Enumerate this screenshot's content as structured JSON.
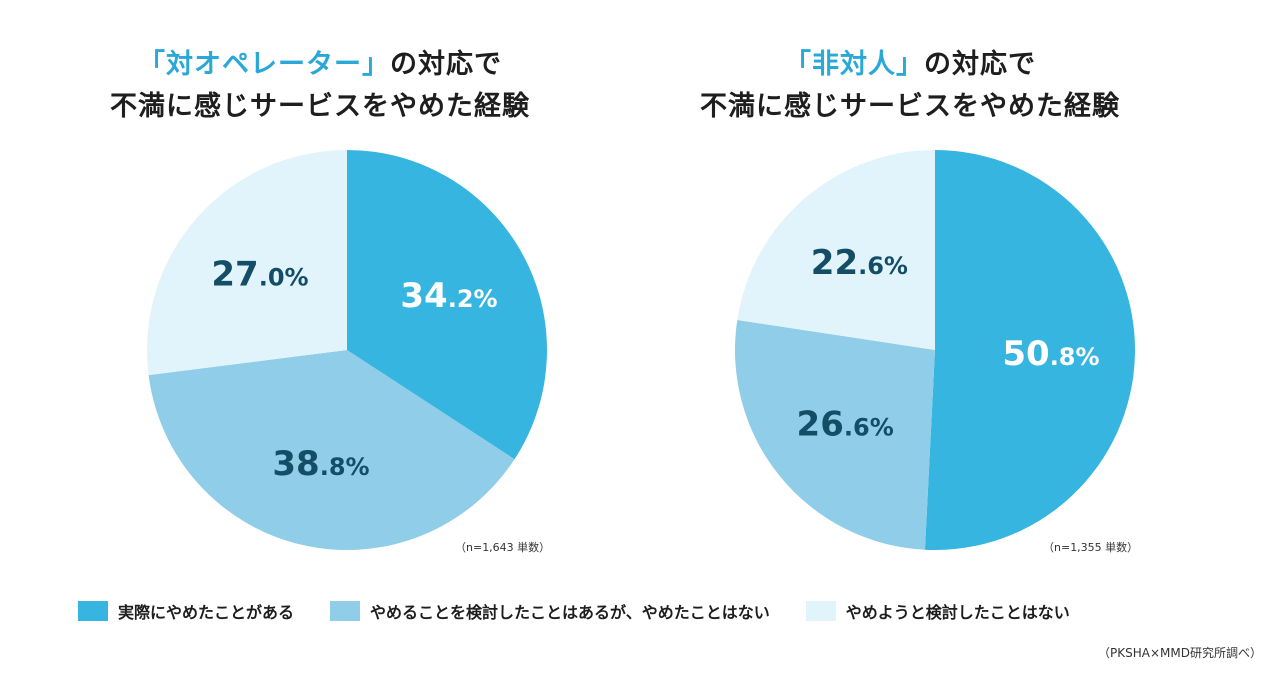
{
  "colors": {
    "actually_quit": "#35b5df",
    "considered": "#8fcde8",
    "not_considered": "#e2f4fb",
    "accent": "#2aa8d8",
    "label_dark": "#134d66",
    "label_light": "#ffffff"
  },
  "chart_data": [
    {
      "type": "pie",
      "title_accent": "「対オペレーター」",
      "title_rest": "の対応で",
      "title_line2": "不満に感じサービスをやめた経験",
      "note": "（n=1,643 単数）",
      "slices": [
        {
          "label": "実際にやめたことがある",
          "value": 34.2,
          "int": "34",
          "dec": ".2%"
        },
        {
          "label": "やめることを検討したことはあるが、やめたことはない",
          "value": 38.8,
          "int": "38",
          "dec": ".8%"
        },
        {
          "label": "やめようと検討したことはない",
          "value": 27.0,
          "int": "27",
          "dec": ".0%"
        }
      ]
    },
    {
      "type": "pie",
      "title_accent": "「非対人」",
      "title_rest": "の対応で",
      "title_line2": "不満に感じサービスをやめた経験",
      "note": "（n=1,355 単数）",
      "slices": [
        {
          "label": "実際にやめたことがある",
          "value": 50.8,
          "int": "50",
          "dec": ".8%"
        },
        {
          "label": "やめることを検討したことはあるが、やめたことはない",
          "value": 26.6,
          "int": "26",
          "dec": ".6%"
        },
        {
          "label": "やめようと検討したことはない",
          "value": 22.6,
          "int": "22",
          "dec": ".6%"
        }
      ]
    }
  ],
  "legend": [
    {
      "label": "実際にやめたことがある",
      "color": "#35b5df"
    },
    {
      "label": "やめることを検討したことはあるが、やめたことはない",
      "color": "#8fcde8"
    },
    {
      "label": "やめようと検討したことはない",
      "color": "#e2f4fb"
    }
  ],
  "source": "（PKSHA×MMD研究所調べ）"
}
